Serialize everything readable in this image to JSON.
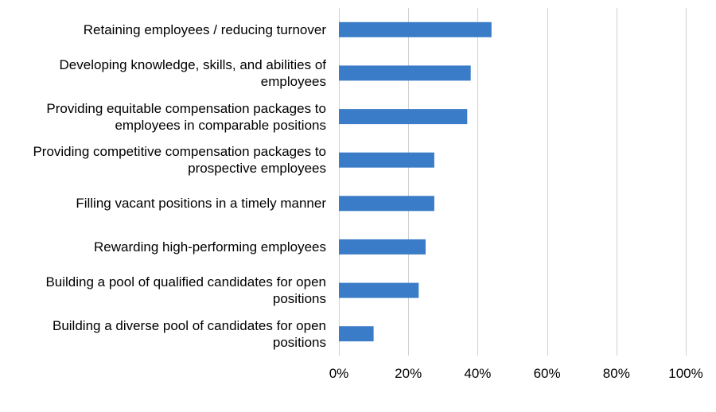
{
  "chart_data": {
    "type": "bar",
    "orientation": "horizontal",
    "categories": [
      [
        "Retaining employees / reducing turnover"
      ],
      [
        "Developing knowledge, skills, and abilities of",
        "employees"
      ],
      [
        "Providing equitable compensation packages to",
        "employees in comparable positions"
      ],
      [
        "Providing competitive compensation packages to",
        "prospective employees"
      ],
      [
        "Filling vacant positions in a timely manner"
      ],
      [
        "Rewarding high-performing employees"
      ],
      [
        "Building a pool of qualified candidates for open",
        "positions"
      ],
      [
        "Building a diverse pool of candidates for open",
        "positions"
      ]
    ],
    "values": [
      44,
      38,
      37,
      27.5,
      27.5,
      25,
      23,
      10
    ],
    "xlim": [
      0,
      100
    ],
    "xticks": [
      "0%",
      "20%",
      "40%",
      "60%",
      "80%",
      "100%"
    ],
    "xtick_values": [
      0,
      20,
      40,
      60,
      80,
      100
    ],
    "grid": "vertical",
    "legend": "none",
    "title": "",
    "xlabel": "",
    "ylabel": "",
    "colors": {
      "bar": "#3a7cc7",
      "grid": "#d0d0d0"
    }
  }
}
